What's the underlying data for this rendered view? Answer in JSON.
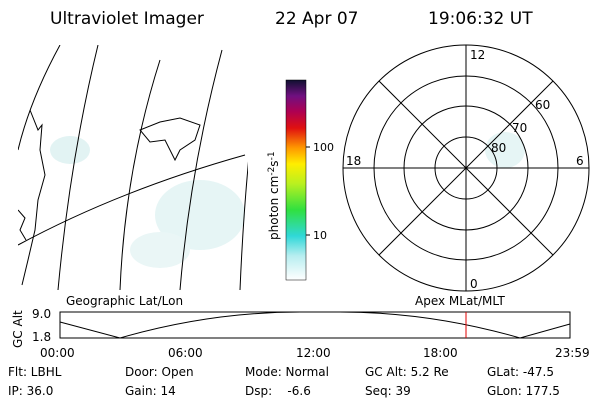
{
  "header": {
    "title": "Ultraviolet Imager",
    "date": "22 Apr 07",
    "time": "19:06:32 UT"
  },
  "colorbar": {
    "label": {
      "unit": "photon cm",
      "exp1": "-2",
      "unit2": "s",
      "exp2": "-1"
    },
    "ticks": [
      "100",
      "10"
    ]
  },
  "polar": {
    "hours": {
      "top": "12",
      "left": "18",
      "right": "6",
      "bottom": "0"
    },
    "latitudes": [
      "60",
      "70",
      "80"
    ]
  },
  "timeline": {
    "left_label": "Geographic Lat/Lon",
    "right_label": "Apex MLat/MLT",
    "axis_label": "GC Alt",
    "yticks": [
      "9.0",
      "1.8"
    ],
    "xticks": [
      "00:00",
      "06:00",
      "12:00",
      "18:00",
      "23:59"
    ]
  },
  "footer": {
    "rows": [
      [
        "Flt: LBHL",
        "Door: Open",
        "Mode: Normal",
        "GC Alt: 5.2 Re",
        "GLat: -47.5"
      ],
      [
        "IP: 36.0",
        "Gain: 14",
        "Dsp:    -6.6",
        "Seq: 39",
        "GLon: 177.5"
      ]
    ]
  }
}
